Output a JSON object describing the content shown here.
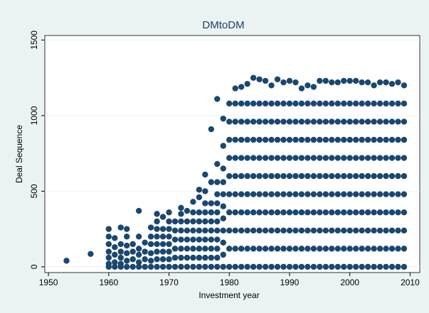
{
  "chart_data": {
    "type": "scatter",
    "title": "DMtoDM",
    "x_label": "Investment year",
    "y_label": "Deal Sequence",
    "color": "#1a476f",
    "grid": true,
    "xlim": [
      1949.4,
      2011.6
    ],
    "ylim": [
      -38,
      1530
    ],
    "xticks": [
      1950,
      1960,
      1970,
      1980,
      1990,
      2000,
      2010
    ],
    "yticks": [
      0,
      500,
      1000,
      1500
    ],
    "x": [
      1953,
      1957,
      1960,
      1960,
      1960,
      1960,
      1960,
      1960,
      1960,
      1961,
      1961,
      1961,
      1961,
      1961,
      1962,
      1962,
      1962,
      1962,
      1962,
      1962,
      1963,
      1963,
      1963,
      1963,
      1963,
      1963,
      1964,
      1964,
      1964,
      1964,
      1965,
      1965,
      1965,
      1965,
      1965,
      1965,
      1966,
      1966,
      1966,
      1966,
      1967,
      1967,
      1967,
      1967,
      1967,
      1967,
      1968,
      1968,
      1968,
      1968,
      1968,
      1968,
      1968,
      1968,
      1969,
      1969,
      1969,
      1969,
      1969,
      1969,
      1969,
      1970,
      1970,
      1970,
      1970,
      1970,
      1970,
      1970,
      1970,
      1971,
      1971,
      1971,
      1971,
      1971,
      1971,
      1972,
      1972,
      1972,
      1972,
      1972,
      1972,
      1972,
      1972,
      1973,
      1973,
      1973,
      1973,
      1973,
      1973,
      1973,
      1974,
      1974,
      1974,
      1974,
      1974,
      1974,
      1974,
      1974,
      1975,
      1975,
      1975,
      1975,
      1975,
      1975,
      1975,
      1975,
      1975,
      1976,
      1976,
      1976,
      1976,
      1976,
      1976,
      1976,
      1976,
      1976,
      1976,
      1977,
      1977,
      1977,
      1977,
      1977,
      1977,
      1977,
      1977,
      1977,
      1977,
      1978,
      1978,
      1978,
      1978,
      1978,
      1978,
      1978,
      1978,
      1978,
      1978,
      1978,
      1978,
      1979,
      1979,
      1979,
      1979,
      1979,
      1979,
      1979,
      1979,
      1979,
      1979,
      1979,
      1980,
      1980,
      1980,
      1980,
      1980,
      1980,
      1980,
      1980,
      1980,
      1980,
      1981,
      1981,
      1981,
      1981,
      1981,
      1981,
      1981,
      1981,
      1981,
      1981,
      1981,
      1982,
      1982,
      1982,
      1982,
      1982,
      1982,
      1982,
      1982,
      1982,
      1982,
      1982,
      1983,
      1983,
      1983,
      1983,
      1983,
      1983,
      1983,
      1983,
      1983,
      1983,
      1983,
      1984,
      1984,
      1984,
      1984,
      1984,
      1984,
      1984,
      1984,
      1984,
      1984,
      1984,
      1985,
      1985,
      1985,
      1985,
      1985,
      1985,
      1985,
      1985,
      1985,
      1985,
      1985,
      1986,
      1986,
      1986,
      1986,
      1986,
      1986,
      1986,
      1986,
      1986,
      1986,
      1986,
      1987,
      1987,
      1987,
      1987,
      1987,
      1987,
      1987,
      1987,
      1987,
      1987,
      1987,
      1988,
      1988,
      1988,
      1988,
      1988,
      1988,
      1988,
      1988,
      1988,
      1988,
      1988,
      1989,
      1989,
      1989,
      1989,
      1989,
      1989,
      1989,
      1989,
      1989,
      1989,
      1989,
      1990,
      1990,
      1990,
      1990,
      1990,
      1990,
      1990,
      1990,
      1990,
      1990,
      1990,
      1991,
      1991,
      1991,
      1991,
      1991,
      1991,
      1991,
      1991,
      1991,
      1991,
      1991,
      1992,
      1992,
      1992,
      1992,
      1992,
      1992,
      1992,
      1992,
      1992,
      1992,
      1992,
      1993,
      1993,
      1993,
      1993,
      1993,
      1993,
      1993,
      1993,
      1993,
      1993,
      1993,
      1994,
      1994,
      1994,
      1994,
      1994,
      1994,
      1994,
      1994,
      1994,
      1994,
      1994,
      1995,
      1995,
      1995,
      1995,
      1995,
      1995,
      1995,
      1995,
      1995,
      1995,
      1995,
      1996,
      1996,
      1996,
      1996,
      1996,
      1996,
      1996,
      1996,
      1996,
      1996,
      1996,
      1997,
      1997,
      1997,
      1997,
      1997,
      1997,
      1997,
      1997,
      1997,
      1997,
      1997,
      1998,
      1998,
      1998,
      1998,
      1998,
      1998,
      1998,
      1998,
      1998,
      1998,
      1998,
      1999,
      1999,
      1999,
      1999,
      1999,
      1999,
      1999,
      1999,
      1999,
      1999,
      1999,
      2000,
      2000,
      2000,
      2000,
      2000,
      2000,
      2000,
      2000,
      2000,
      2000,
      2000,
      2001,
      2001,
      2001,
      2001,
      2001,
      2001,
      2001,
      2001,
      2001,
      2001,
      2001,
      2002,
      2002,
      2002,
      2002,
      2002,
      2002,
      2002,
      2002,
      2002,
      2002,
      2002,
      2003,
      2003,
      2003,
      2003,
      2003,
      2003,
      2003,
      2003,
      2003,
      2003,
      2003,
      2004,
      2004,
      2004,
      2004,
      2004,
      2004,
      2004,
      2004,
      2004,
      2004,
      2004,
      2005,
      2005,
      2005,
      2005,
      2005,
      2005,
      2005,
      2005,
      2005,
      2005,
      2005,
      2006,
      2006,
      2006,
      2006,
      2006,
      2006,
      2006,
      2006,
      2006,
      2006,
      2006,
      2007,
      2007,
      2007,
      2007,
      2007,
      2007,
      2007,
      2007,
      2007,
      2007,
      2007,
      2008,
      2008,
      2008,
      2008,
      2008,
      2008,
      2008,
      2008,
      2008,
      2008,
      2008,
      2009,
      2009,
      2009,
      2009,
      2009,
      2009,
      2009,
      2009,
      2009,
      2009,
      2009
    ],
    "values": [
      40,
      85,
      0,
      20,
      60,
      100,
      150,
      200,
      250,
      0,
      30,
      80,
      130,
      190,
      0,
      20,
      60,
      100,
      150,
      260,
      0,
      40,
      90,
      140,
      200,
      250,
      0,
      50,
      100,
      150,
      0,
      30,
      80,
      120,
      200,
      370,
      0,
      50,
      100,
      160,
      0,
      40,
      90,
      150,
      200,
      260,
      0,
      50,
      100,
      150,
      200,
      250,
      300,
      350,
      0,
      50,
      100,
      150,
      200,
      250,
      330,
      0,
      50,
      100,
      150,
      200,
      250,
      300,
      360,
      0,
      60,
      120,
      180,
      240,
      300,
      0,
      60,
      120,
      180,
      240,
      300,
      350,
      390,
      0,
      60,
      120,
      180,
      240,
      300,
      370,
      0,
      60,
      120,
      180,
      240,
      300,
      360,
      430,
      0,
      60,
      120,
      180,
      240,
      300,
      360,
      460,
      510,
      0,
      60,
      120,
      180,
      240,
      300,
      360,
      420,
      500,
      610,
      0,
      60,
      120,
      180,
      240,
      300,
      360,
      420,
      560,
      910,
      0,
      60,
      120,
      180,
      240,
      300,
      360,
      420,
      480,
      560,
      680,
      1110,
      0,
      80,
      160,
      240,
      320,
      400,
      480,
      560,
      650,
      800,
      980,
      0,
      120,
      240,
      360,
      480,
      600,
      720,
      840,
      960,
      1080,
      0,
      120,
      240,
      360,
      480,
      600,
      720,
      840,
      960,
      1080,
      1180,
      0,
      120,
      240,
      360,
      480,
      600,
      720,
      840,
      960,
      1080,
      1190,
      0,
      120,
      240,
      360,
      480,
      600,
      720,
      840,
      960,
      1080,
      1210,
      0,
      120,
      240,
      360,
      480,
      600,
      720,
      840,
      960,
      1080,
      1250,
      0,
      120,
      240,
      360,
      480,
      600,
      720,
      840,
      960,
      1080,
      1240,
      0,
      120,
      240,
      360,
      480,
      600,
      720,
      840,
      960,
      1080,
      1230,
      0,
      120,
      240,
      360,
      480,
      600,
      720,
      840,
      960,
      1080,
      1200,
      0,
      120,
      240,
      360,
      480,
      600,
      720,
      840,
      960,
      1080,
      1240,
      0,
      120,
      240,
      360,
      480,
      600,
      720,
      840,
      960,
      1080,
      1220,
      0,
      120,
      240,
      360,
      480,
      600,
      720,
      840,
      960,
      1080,
      1230,
      0,
      120,
      240,
      360,
      480,
      600,
      720,
      840,
      960,
      1080,
      1220,
      0,
      120,
      240,
      360,
      480,
      600,
      720,
      840,
      960,
      1080,
      1180,
      0,
      120,
      240,
      360,
      480,
      600,
      720,
      840,
      960,
      1080,
      1200,
      0,
      120,
      240,
      360,
      480,
      600,
      720,
      840,
      960,
      1080,
      1190,
      0,
      120,
      240,
      360,
      480,
      600,
      720,
      840,
      960,
      1080,
      1230,
      0,
      120,
      240,
      360,
      480,
      600,
      720,
      840,
      960,
      1080,
      1230,
      0,
      120,
      240,
      360,
      480,
      600,
      720,
      840,
      960,
      1080,
      1220,
      0,
      120,
      240,
      360,
      480,
      600,
      720,
      840,
      960,
      1080,
      1220,
      0,
      120,
      240,
      360,
      480,
      600,
      720,
      840,
      960,
      1080,
      1230,
      0,
      120,
      240,
      360,
      480,
      600,
      720,
      840,
      960,
      1080,
      1230,
      0,
      120,
      240,
      360,
      480,
      600,
      720,
      840,
      960,
      1080,
      1230,
      0,
      120,
      240,
      360,
      480,
      600,
      720,
      840,
      960,
      1080,
      1220,
      0,
      120,
      240,
      360,
      480,
      600,
      720,
      840,
      960,
      1080,
      1220,
      0,
      120,
      240,
      360,
      480,
      600,
      720,
      840,
      960,
      1080,
      1200,
      0,
      120,
      240,
      360,
      480,
      600,
      720,
      840,
      960,
      1080,
      1220,
      0,
      120,
      240,
      360,
      480,
      600,
      720,
      840,
      960,
      1080,
      1220,
      0,
      120,
      240,
      360,
      480,
      600,
      720,
      840,
      960,
      1080,
      1210,
      0,
      120,
      240,
      360,
      480,
      600,
      720,
      840,
      960,
      1080,
      1220,
      0,
      120,
      240,
      360,
      480,
      600,
      720,
      840,
      960,
      1080,
      1200
    ]
  }
}
